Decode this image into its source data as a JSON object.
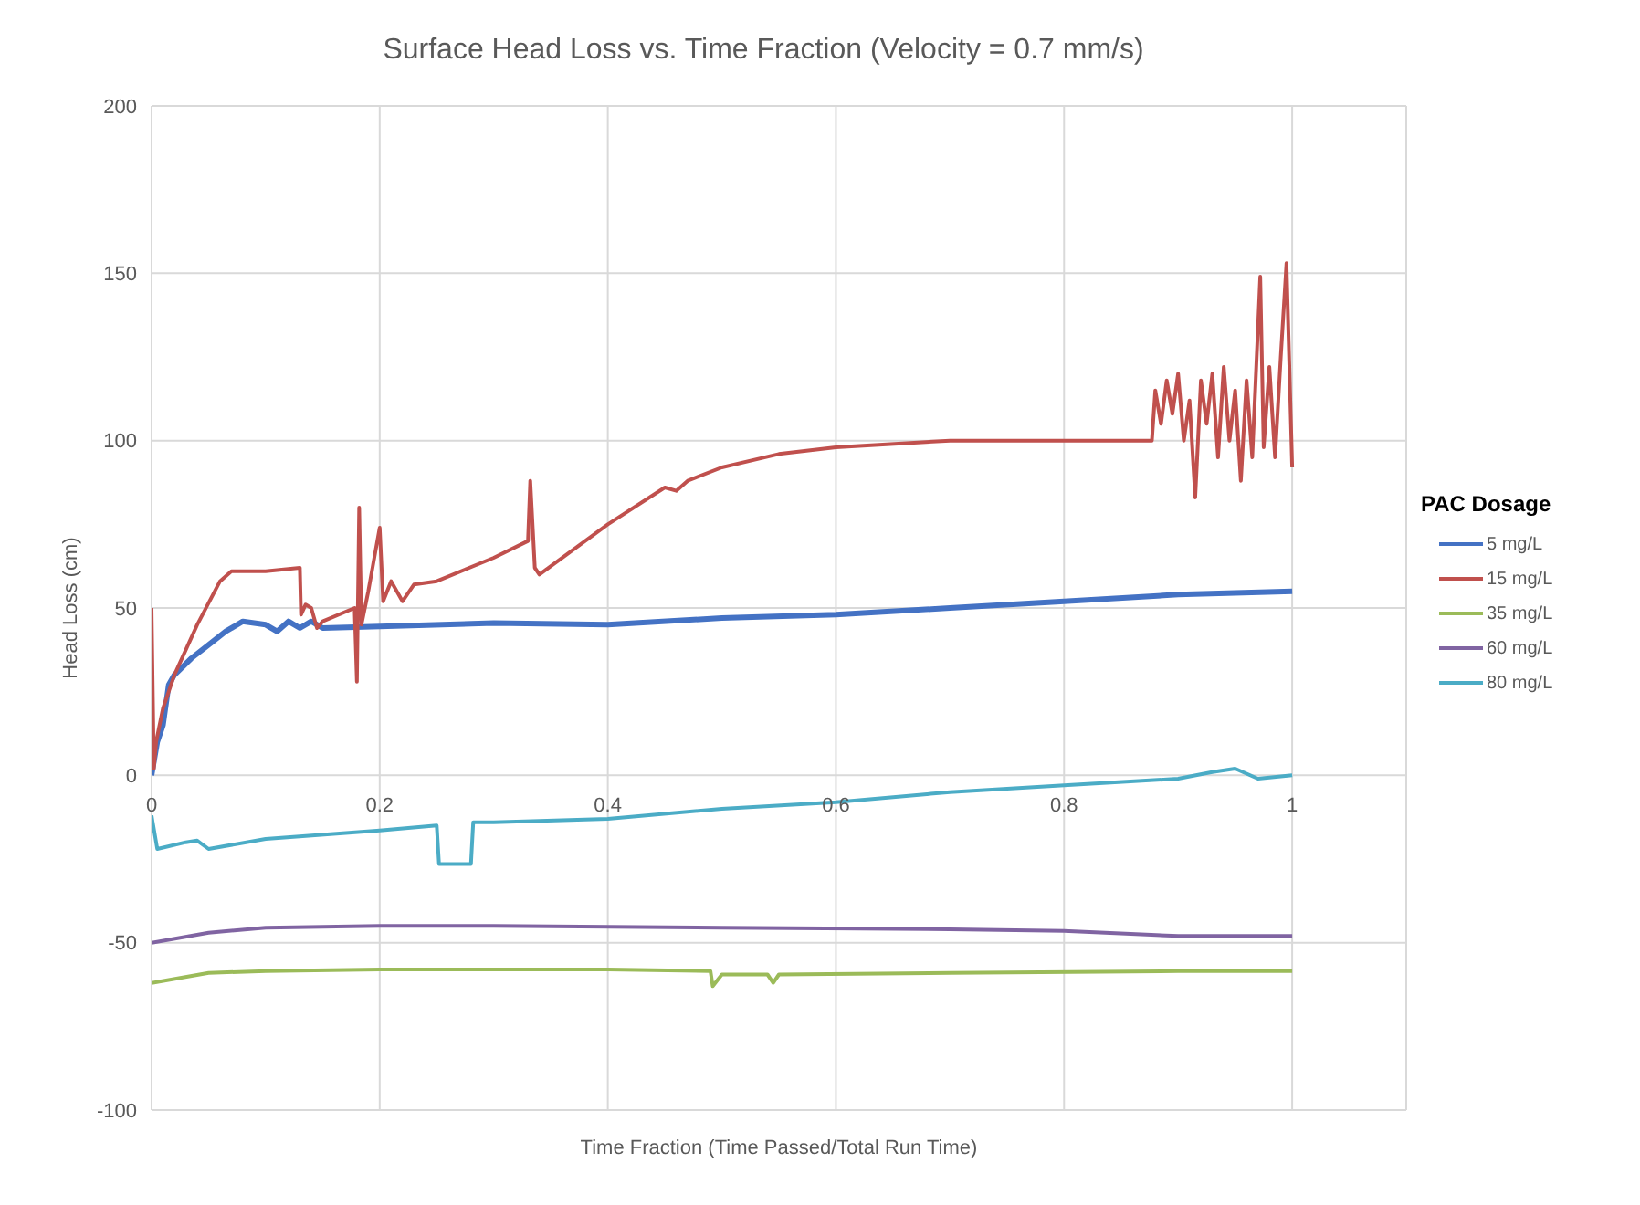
{
  "chart_data": {
    "type": "line",
    "title": "Surface Head Loss vs. Time Fraction (Velocity = 0.7 mm/s)",
    "xlabel": "Time Fraction (Time Passed/Total Run Time)",
    "ylabel": "Head Loss (cm)",
    "legend_title": "PAC Dosage",
    "xlim": [
      0,
      1.1
    ],
    "xticks": [
      0,
      0.2,
      0.4,
      0.6,
      0.8,
      1
    ],
    "ylim": [
      -100,
      200
    ],
    "yticks": [
      -100,
      -50,
      0,
      50,
      100,
      150,
      200
    ],
    "grid": true,
    "legend": "right",
    "marker": "none",
    "series": [
      {
        "name": "5 mg/L",
        "color": "#4472c4",
        "x": [
          0,
          0.005,
          0.01,
          0.015,
          0.02,
          0.035,
          0.05,
          0.065,
          0.08,
          0.1,
          0.11,
          0.12,
          0.13,
          0.14,
          0.15,
          0.2,
          0.3,
          0.4,
          0.5,
          0.6,
          0.7,
          0.8,
          0.9,
          1
        ],
        "values": [
          0,
          10,
          15,
          27,
          30,
          35,
          39,
          43,
          46,
          45,
          43,
          46,
          44,
          46,
          44,
          44.5,
          45.5,
          45,
          47,
          48,
          50,
          52,
          54,
          55
        ]
      },
      {
        "name": "15 mg/L",
        "color": "#c0504d",
        "x": [
          0,
          0.002,
          0.004,
          0.01,
          0.02,
          0.04,
          0.06,
          0.07,
          0.1,
          0.13,
          0.131,
          0.135,
          0.14,
          0.145,
          0.15,
          0.178,
          0.18,
          0.182,
          0.184,
          0.19,
          0.2,
          0.203,
          0.21,
          0.22,
          0.23,
          0.25,
          0.3,
          0.33,
          0.332,
          0.336,
          0.34,
          0.4,
          0.45,
          0.46,
          0.47,
          0.5,
          0.55,
          0.6,
          0.7,
          0.8,
          0.875,
          0.877,
          0.88,
          0.885,
          0.89,
          0.895,
          0.9,
          0.905,
          0.91,
          0.915,
          0.92,
          0.925,
          0.93,
          0.935,
          0.94,
          0.945,
          0.95,
          0.955,
          0.96,
          0.965,
          0.972,
          0.975,
          0.98,
          0.985,
          0.99,
          0.995,
          1
        ],
        "values": [
          50,
          2,
          10,
          20,
          30,
          45,
          58,
          61,
          61,
          62,
          48,
          51,
          50,
          44,
          46,
          50,
          28,
          80,
          45,
          55,
          74,
          52,
          58,
          52,
          57,
          58,
          65,
          70,
          88,
          62,
          60,
          75,
          86,
          85,
          88,
          92,
          96,
          98,
          100,
          100,
          100,
          100,
          115,
          105,
          118,
          108,
          120,
          100,
          112,
          83,
          118,
          105,
          120,
          95,
          122,
          100,
          115,
          88,
          118,
          95,
          149,
          98,
          122,
          95,
          125,
          153,
          92
        ]
      },
      {
        "name": "35 mg/L",
        "color": "#9bbb59",
        "x": [
          0,
          0.05,
          0.1,
          0.2,
          0.4,
          0.49,
          0.492,
          0.5,
          0.54,
          0.545,
          0.55,
          0.7,
          0.9,
          1
        ],
        "values": [
          -62,
          -59,
          -58.5,
          -58,
          -58,
          -58.5,
          -63,
          -59.5,
          -59.5,
          -62,
          -59.5,
          -59,
          -58.5,
          -58.5
        ]
      },
      {
        "name": "60 mg/L",
        "color": "#8064a2",
        "x": [
          0,
          0.05,
          0.1,
          0.2,
          0.3,
          0.5,
          0.7,
          0.8,
          0.9,
          1
        ],
        "values": [
          -50,
          -47,
          -45.5,
          -45,
          -45,
          -45.5,
          -46,
          -46.5,
          -48,
          -48
        ]
      },
      {
        "name": "80 mg/L",
        "color": "#4bacc6",
        "x": [
          0,
          0.005,
          0.03,
          0.04,
          0.05,
          0.1,
          0.2,
          0.25,
          0.252,
          0.28,
          0.282,
          0.3,
          0.4,
          0.5,
          0.6,
          0.7,
          0.8,
          0.9,
          0.93,
          0.95,
          0.97,
          1
        ],
        "values": [
          -12,
          -22,
          -20,
          -19.5,
          -22,
          -19,
          -16.5,
          -15,
          -26.5,
          -26.5,
          -14,
          -14,
          -13,
          -10,
          -8,
          -5,
          -3,
          -1,
          1,
          2,
          -1,
          0
        ]
      }
    ]
  }
}
